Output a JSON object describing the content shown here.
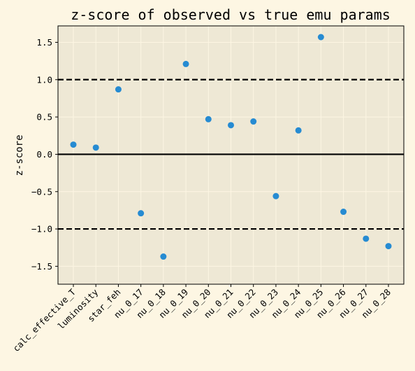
{
  "chart_data": {
    "type": "scatter",
    "title": "z-score of observed vs true emu params",
    "xlabel": "",
    "ylabel": "z-score",
    "categories": [
      "calc_effective_T",
      "luminosity",
      "star_feh",
      "nu_0_17",
      "nu_0_18",
      "nu_0_19",
      "nu_0_20",
      "nu_0_21",
      "nu_0_22",
      "nu_0_23",
      "nu_0_24",
      "nu_0_25",
      "nu_0_26",
      "nu_0_27",
      "nu_0_28"
    ],
    "values": [
      0.13,
      0.09,
      0.87,
      -0.79,
      -1.37,
      1.21,
      0.47,
      0.39,
      0.44,
      -0.56,
      0.32,
      1.57,
      -0.77,
      -1.13,
      -1.23
    ],
    "ylim": [
      -1.74,
      1.72
    ],
    "yticks": [
      -1.5,
      -1.0,
      -0.5,
      0.0,
      0.5,
      1.0,
      1.5
    ],
    "ytick_labels": [
      "−1.5",
      "−1.0",
      "−0.5",
      "0.0",
      "0.5",
      "1.0",
      "1.5"
    ],
    "reference_lines": [
      {
        "y": 0.0,
        "style": "solid"
      },
      {
        "y": 1.0,
        "style": "dashed"
      },
      {
        "y": -1.0,
        "style": "dashed"
      }
    ],
    "grid": true,
    "colors": {
      "background": "#fdf6e3",
      "plot_background": "#eee8d5",
      "grid": "#fdf6e3",
      "point": "#268bd2",
      "reference": "#000000"
    }
  }
}
